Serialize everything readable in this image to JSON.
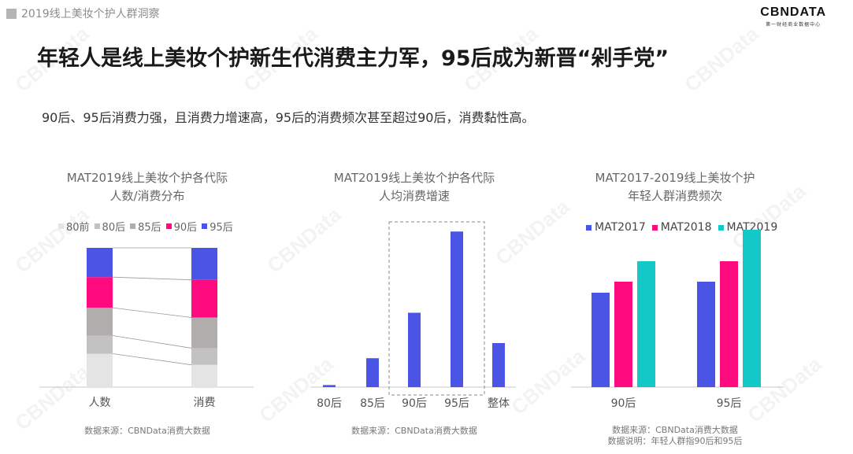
{
  "header": {
    "section_label": "2019线上美妆个护人群洞察",
    "logo_main": "CBNDATA",
    "logo_sub": "第一财经商业数据中心"
  },
  "headline": "年轻人是线上美妆个护新生代消费主力军，95后成为新晋“剁手党”",
  "subline": "90后、95后消费力强，且消费力增速高，95后的消费频次甚至超过90后，消费黏性高。",
  "watermark": "CBNData",
  "colors": {
    "c80前": "#e4e4e4",
    "c80后": "#c2c2c2",
    "c85后": "#b2adad",
    "c90后": "#ff0b80",
    "c95后": "#4a55e6",
    "mat2017": "#4a55e6",
    "mat2018": "#ff0b80",
    "mat2019": "#14c8c8"
  },
  "chart_data": [
    {
      "type": "bar",
      "stacked": true,
      "normalized": true,
      "title": "MAT2019线上美妆个护各代际人数/消费分布",
      "title_lines": [
        "MAT2019线上美妆个护各代际",
        "人数/消费分布"
      ],
      "categories": [
        "人数",
        "消费"
      ],
      "series": [
        {
          "name": "80前",
          "values": [
            0.24,
            0.16
          ]
        },
        {
          "name": "80后",
          "values": [
            0.13,
            0.12
          ]
        },
        {
          "name": "85后",
          "values": [
            0.2,
            0.22
          ]
        },
        {
          "name": "90后",
          "values": [
            0.22,
            0.27
          ]
        },
        {
          "name": "95后",
          "values": [
            0.21,
            0.23
          ]
        }
      ],
      "legend": [
        "80前",
        "80后",
        "85后",
        "90后",
        "95后"
      ],
      "source": "数据来源：CBNData消费大数据"
    },
    {
      "type": "bar",
      "title": "MAT2019线上美妆个护各代际人均消费增速",
      "title_lines": [
        "MAT2019线上美妆个护各代际",
        "人均消费增速"
      ],
      "categories": [
        "80后",
        "85后",
        "90后",
        "95后",
        "整体"
      ],
      "values": [
        1.5,
        21,
        54,
        113,
        32
      ],
      "ylim": [
        0,
        120
      ],
      "highlight": [
        "90后",
        "95后"
      ],
      "source": "数据来源：CBNData消费大数据"
    },
    {
      "type": "bar",
      "title": "MAT2017-2019线上美妆个护年轻人群消费频次",
      "title_lines": [
        "MAT2017-2019线上美妆个护",
        "年轻人群消费频次"
      ],
      "categories": [
        "90后",
        "95后"
      ],
      "series": [
        {
          "name": "MAT2017",
          "values": [
            60,
            67
          ]
        },
        {
          "name": "MAT2018",
          "values": [
            67,
            80
          ]
        },
        {
          "name": "MAT2019",
          "values": [
            80,
            100
          ]
        }
      ],
      "ylim": [
        0,
        110
      ],
      "source_lines": [
        "数据来源：CBNData消费大数据",
        "数据说明：年轻人群指90后和95后"
      ]
    }
  ]
}
